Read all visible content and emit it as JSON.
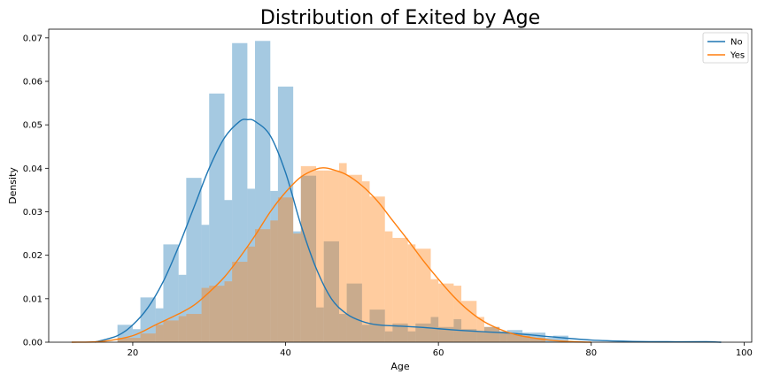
{
  "chart_data": {
    "type": "histogram+kde",
    "title": "Distribution of Exited by Age",
    "xlabel": "Age",
    "ylabel": "Density",
    "xlim": [
      9,
      101
    ],
    "ylim": [
      0,
      0.072
    ],
    "xticks": [
      20,
      40,
      60,
      80,
      100
    ],
    "yticks": [
      0.0,
      0.01,
      0.02,
      0.03,
      0.04,
      0.05,
      0.06,
      0.07
    ],
    "ytick_labels": [
      "0.00",
      "0.01",
      "0.02",
      "0.03",
      "0.04",
      "0.05",
      "0.06",
      "0.07"
    ],
    "grid": false,
    "legend": {
      "position": "top-right",
      "entries": [
        "No",
        "Yes"
      ]
    },
    "colors": {
      "No": "#1f77b4",
      "Yes": "#ff7f0e"
    },
    "series": [
      {
        "name": "No",
        "hist_bins": [
          {
            "x0": 18,
            "x1": 20,
            "density": 0.004
          },
          {
            "x0": 20,
            "x1": 21,
            "density": 0.003
          },
          {
            "x0": 21,
            "x1": 23,
            "density": 0.0103
          },
          {
            "x0": 23,
            "x1": 24,
            "density": 0.0078
          },
          {
            "x0": 24,
            "x1": 26,
            "density": 0.0225
          },
          {
            "x0": 26,
            "x1": 27,
            "density": 0.0155
          },
          {
            "x0": 27,
            "x1": 29,
            "density": 0.0378
          },
          {
            "x0": 29,
            "x1": 30,
            "density": 0.027
          },
          {
            "x0": 30,
            "x1": 32,
            "density": 0.0572
          },
          {
            "x0": 32,
            "x1": 33,
            "density": 0.0327
          },
          {
            "x0": 33,
            "x1": 35,
            "density": 0.0688
          },
          {
            "x0": 35,
            "x1": 36,
            "density": 0.0353
          },
          {
            "x0": 36,
            "x1": 38,
            "density": 0.0693
          },
          {
            "x0": 38,
            "x1": 39,
            "density": 0.0348
          },
          {
            "x0": 39,
            "x1": 41,
            "density": 0.0588
          },
          {
            "x0": 41,
            "x1": 42,
            "density": 0.0255
          },
          {
            "x0": 42,
            "x1": 44,
            "density": 0.0383
          },
          {
            "x0": 44,
            "x1": 45,
            "density": 0.008
          },
          {
            "x0": 45,
            "x1": 47,
            "density": 0.0232
          },
          {
            "x0": 47,
            "x1": 48,
            "density": 0.0065
          },
          {
            "x0": 48,
            "x1": 50,
            "density": 0.0135
          },
          {
            "x0": 50,
            "x1": 51,
            "density": 0.004
          },
          {
            "x0": 51,
            "x1": 53,
            "density": 0.0075
          },
          {
            "x0": 53,
            "x1": 54,
            "density": 0.0025
          },
          {
            "x0": 54,
            "x1": 56,
            "density": 0.0043
          },
          {
            "x0": 56,
            "x1": 57,
            "density": 0.0025
          },
          {
            "x0": 57,
            "x1": 59,
            "density": 0.0043
          },
          {
            "x0": 59,
            "x1": 60,
            "density": 0.0058
          },
          {
            "x0": 60,
            "x1": 62,
            "density": 0.0035
          },
          {
            "x0": 62,
            "x1": 63,
            "density": 0.0053
          },
          {
            "x0": 63,
            "x1": 65,
            "density": 0.003
          },
          {
            "x0": 65,
            "x1": 66,
            "density": 0.0025
          },
          {
            "x0": 66,
            "x1": 68,
            "density": 0.0035
          },
          {
            "x0": 68,
            "x1": 69,
            "density": 0.0025
          },
          {
            "x0": 69,
            "x1": 71,
            "density": 0.0028
          },
          {
            "x0": 71,
            "x1": 72,
            "density": 0.0022
          },
          {
            "x0": 72,
            "x1": 74,
            "density": 0.0022
          },
          {
            "x0": 74,
            "x1": 75,
            "density": 0.001
          },
          {
            "x0": 75,
            "x1": 77,
            "density": 0.0015
          }
        ],
        "kde_x": [
          15,
          18,
          20,
          22,
          24,
          26,
          28,
          30,
          32,
          34,
          35,
          36,
          38,
          40,
          42,
          44,
          46,
          48,
          50,
          52,
          55,
          58,
          60,
          63,
          66,
          70,
          75,
          80,
          85,
          90,
          95,
          97
        ],
        "kde_y": [
          0.0,
          0.0015,
          0.004,
          0.008,
          0.014,
          0.022,
          0.031,
          0.04,
          0.047,
          0.0508,
          0.0512,
          0.0508,
          0.0475,
          0.039,
          0.027,
          0.017,
          0.01,
          0.0065,
          0.0048,
          0.004,
          0.0037,
          0.0034,
          0.0031,
          0.0027,
          0.0024,
          0.002,
          0.0012,
          0.0005,
          0.0002,
          0.0001,
          0.0001,
          0.0
        ]
      },
      {
        "name": "Yes",
        "hist_bins": [
          {
            "x0": 18,
            "x1": 21,
            "density": 0.001
          },
          {
            "x0": 21,
            "x1": 23,
            "density": 0.002
          },
          {
            "x0": 23,
            "x1": 24,
            "density": 0.004
          },
          {
            "x0": 24,
            "x1": 26,
            "density": 0.005
          },
          {
            "x0": 26,
            "x1": 27,
            "density": 0.006
          },
          {
            "x0": 27,
            "x1": 29,
            "density": 0.0065
          },
          {
            "x0": 29,
            "x1": 30,
            "density": 0.0125
          },
          {
            "x0": 30,
            "x1": 32,
            "density": 0.013
          },
          {
            "x0": 32,
            "x1": 33,
            "density": 0.014
          },
          {
            "x0": 33,
            "x1": 35,
            "density": 0.0185
          },
          {
            "x0": 35,
            "x1": 36,
            "density": 0.022
          },
          {
            "x0": 36,
            "x1": 38,
            "density": 0.026
          },
          {
            "x0": 38,
            "x1": 39,
            "density": 0.028
          },
          {
            "x0": 39,
            "x1": 41,
            "density": 0.0333
          },
          {
            "x0": 41,
            "x1": 42,
            "density": 0.025
          },
          {
            "x0": 42,
            "x1": 44,
            "density": 0.0405
          },
          {
            "x0": 44,
            "x1": 45,
            "density": 0.0395
          },
          {
            "x0": 45,
            "x1": 47,
            "density": 0.0395
          },
          {
            "x0": 47,
            "x1": 48,
            "density": 0.0412
          },
          {
            "x0": 48,
            "x1": 50,
            "density": 0.0385
          },
          {
            "x0": 50,
            "x1": 51,
            "density": 0.037
          },
          {
            "x0": 51,
            "x1": 53,
            "density": 0.0335
          },
          {
            "x0": 53,
            "x1": 54,
            "density": 0.0255
          },
          {
            "x0": 54,
            "x1": 56,
            "density": 0.024
          },
          {
            "x0": 56,
            "x1": 57,
            "density": 0.0225
          },
          {
            "x0": 57,
            "x1": 59,
            "density": 0.0215
          },
          {
            "x0": 59,
            "x1": 60,
            "density": 0.0145
          },
          {
            "x0": 60,
            "x1": 62,
            "density": 0.0135
          },
          {
            "x0": 62,
            "x1": 63,
            "density": 0.013
          },
          {
            "x0": 63,
            "x1": 65,
            "density": 0.0095
          },
          {
            "x0": 65,
            "x1": 66,
            "density": 0.0058
          },
          {
            "x0": 66,
            "x1": 68,
            "density": 0.0035
          },
          {
            "x0": 68,
            "x1": 69,
            "density": 0.0025
          },
          {
            "x0": 69,
            "x1": 71,
            "density": 0.002
          },
          {
            "x0": 71,
            "x1": 72,
            "density": 0.0015
          },
          {
            "x0": 72,
            "x1": 74,
            "density": 0.001
          }
        ],
        "kde_x": [
          12,
          16,
          20,
          23,
          26,
          28,
          30,
          32,
          34,
          36,
          38,
          40,
          42,
          44,
          45,
          46,
          48,
          50,
          52,
          54,
          56,
          58,
          60,
          62,
          64,
          66,
          68,
          70,
          72,
          75,
          78,
          80
        ],
        "kde_y": [
          0.0,
          0.0002,
          0.0015,
          0.004,
          0.0065,
          0.0085,
          0.0115,
          0.015,
          0.0195,
          0.0245,
          0.03,
          0.0345,
          0.038,
          0.0398,
          0.0401,
          0.0398,
          0.0385,
          0.036,
          0.0325,
          0.028,
          0.0235,
          0.0188,
          0.0145,
          0.0105,
          0.0072,
          0.0047,
          0.003,
          0.0018,
          0.0011,
          0.0004,
          0.0001,
          0.0
        ]
      }
    ]
  }
}
